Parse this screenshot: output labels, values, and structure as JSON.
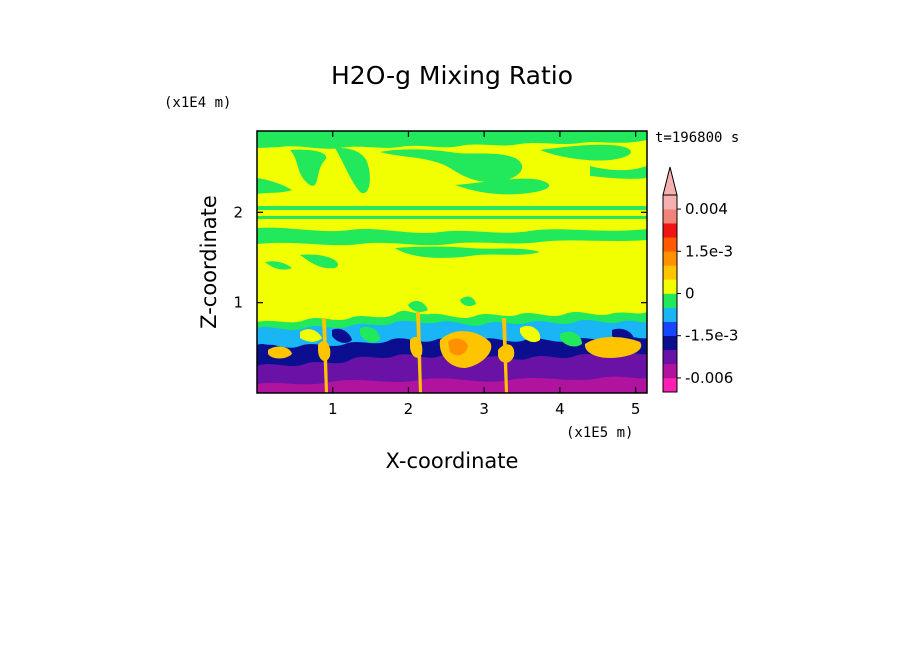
{
  "chart_data": {
    "type": "heatmap",
    "title": "H2O-g Mixing Ratio",
    "xlabel": "X-coordinate",
    "ylabel": "Z-coordinate",
    "x_scale_note": "(x1E5 m)",
    "y_scale_note": "(x1E4 m)",
    "time_label": "t=196800 s",
    "x_ticks": [
      "1",
      "2",
      "3",
      "4",
      "5"
    ],
    "y_ticks": [
      "1",
      "2"
    ],
    "xlim": [
      0,
      5.15
    ],
    "ylim": [
      0,
      2.9
    ],
    "colorbar": {
      "extend": "max",
      "labels": [
        "0.004",
        "1.5e-3",
        "0",
        "-1.5e-3",
        "-0.006"
      ],
      "label_levels": [
        0.004,
        0.0015,
        0,
        -0.0015,
        -0.006
      ],
      "levels": [
        -0.009,
        -0.006,
        -0.004,
        -0.0025,
        -0.0015,
        -0.001,
        -0.0005,
        0,
        0.0005,
        0.001,
        0.0015,
        0.002,
        0.003,
        0.004
      ],
      "colors": [
        "#ff1fb2",
        "#b0149f",
        "#6b12a6",
        "#0b0f8f",
        "#1646ff",
        "#19b5f5",
        "#22e85c",
        "#f2ff00",
        "#ffc400",
        "#ff9000",
        "#ff5a00",
        "#f01414",
        "#f0847a",
        "#f5b0b0"
      ]
    },
    "colors": {
      "upper_field": "#f2ff00",
      "moist_bands": "#22e85c",
      "lower_dry": "#6b12a6",
      "lower_blue": "#0b0f8f",
      "lower_cyan": "#19b5f5",
      "lower_orange": "#ffc400"
    }
  }
}
